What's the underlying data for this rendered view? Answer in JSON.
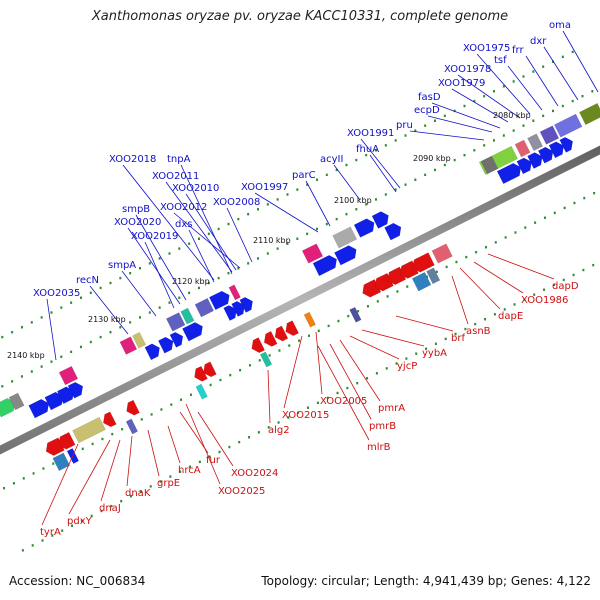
{
  "title": "Xanthomonas oryzae pv. oryzae KACC10331, complete genome",
  "footer": {
    "accession": "Accession: NC_006834",
    "summary": "Topology: circular; Length: 4,941,439 bp; Genes: 4,122"
  },
  "colors": {
    "forward_label": "#1010c8",
    "reverse_label": "#cc1010",
    "tick_mark": "#2e8b2e",
    "backbone": "#7a7a7a"
  },
  "ticks": [
    "2080 kbp",
    "2090 kbp",
    "2100 kbp",
    "2110 kbp",
    "2120 kbp",
    "2130 kbp",
    "2140 kbp"
  ],
  "forward_labels": [
    "oma",
    "dxr",
    "frr",
    "tsf",
    "XOO1975",
    "XOO1978",
    "XOO1979",
    "fasD",
    "ecpD",
    "pru",
    "XOO1991",
    "fhuA",
    "acyII",
    "parC",
    "XOO1997",
    "XOO2008",
    "XOO2012",
    "XOO2010",
    "XOO2011",
    "tnpA",
    "XOO2018",
    "dxs",
    "smpB",
    "XOO2020",
    "XOO2019",
    "smpA",
    "recN",
    "XOO2035"
  ],
  "reverse_labels": [
    "dapD",
    "XOO1986",
    "dapE",
    "asnB",
    "brf",
    "yybA",
    "yjcP",
    "pmrA",
    "pmrB",
    "mlrB",
    "XOO2005",
    "XOO2015",
    "alg2",
    "XOO2024",
    "XOO2025",
    "fur",
    "hrcA",
    "grpE",
    "dnaK",
    "dnaJ",
    "pdxY",
    "tyrA"
  ]
}
